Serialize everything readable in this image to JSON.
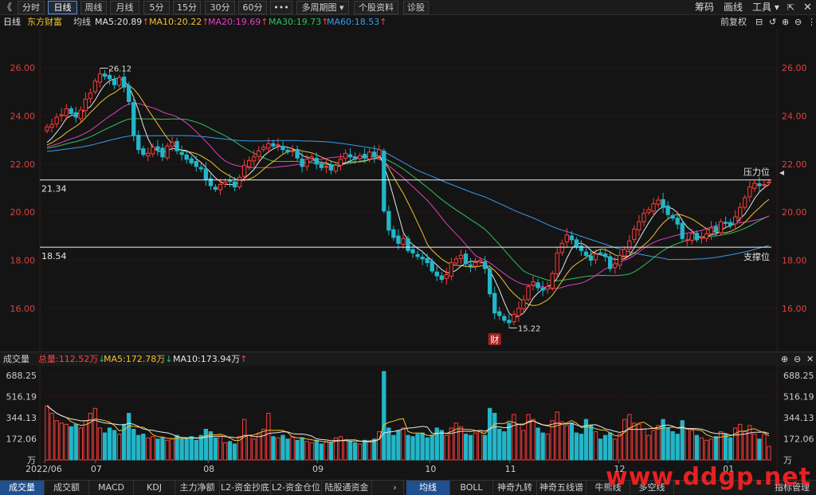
{
  "toolbar": {
    "back_glyph": "《",
    "periods": [
      "分时",
      "日线",
      "周线",
      "月线",
      "5分",
      "15分",
      "30分",
      "60分",
      "•••",
      "多周期图 ▾",
      "个股资料",
      "诊股"
    ],
    "active_period": "日线",
    "right": {
      "chip": "筹码",
      "draw": "画线",
      "tools": "工具 ▾"
    }
  },
  "ma_bar": {
    "period_label": "日线",
    "stock_name": "东方财富",
    "avg_label": "均线",
    "ma5": {
      "text": "MA5:20.89",
      "color": "#e6e6e6"
    },
    "ma10": {
      "text": "MA10:20.22",
      "color": "#f2c230"
    },
    "ma20": {
      "text": "MA20:19.69",
      "color": "#e040c0"
    },
    "ma30": {
      "text": "MA30:19.73",
      "color": "#30c060"
    },
    "ma60": {
      "text": "MA60:18.53",
      "color": "#3a9ae8"
    },
    "up_arrow": "↑",
    "adjust": "前复权"
  },
  "vol_bar": {
    "title": "成交量",
    "total": {
      "text": "总量:112.52万",
      "arrow": "↓",
      "color": "#ff4444"
    },
    "ma5": {
      "text": "MA5:172.78万",
      "arrow": "↓",
      "color": "#f2c230"
    },
    "ma10": {
      "text": "MA10:173.94万",
      "arrow": "↑",
      "color": "#e6e6e6"
    }
  },
  "bottom_tabs_left": [
    "成交量",
    "成交额",
    "MACD",
    "KDJ",
    "主力净额",
    "L2-资金抄底",
    "L2-资金仓位",
    "陆股通资金"
  ],
  "bottom_tabs_right": [
    "均线",
    "BOLL",
    "神奇九转",
    "神奇五线谱",
    "牛熊线",
    "多空线"
  ],
  "bottom_more": "›",
  "bottom_manage": "指标管理",
  "watermark": "www.ddgp.net",
  "colors": {
    "up": "#ff3b3b",
    "down": "#22b6c8",
    "bg": "#141414",
    "grid": "#3a1a1a"
  },
  "chart_data": {
    "type": "candlestick",
    "price_axis": {
      "ticks": [
        26.0,
        24.0,
        22.0,
        20.0,
        18.0,
        16.0
      ],
      "tick_labels": [
        "26.00",
        "24.00",
        "22.00",
        "20.00",
        "18.00",
        "16.00"
      ],
      "range": [
        14.4,
        27.4
      ]
    },
    "volume_axis": {
      "ticks": [
        688.25,
        516.19,
        344.13,
        172.06
      ],
      "tick_labels": [
        "688.25",
        "516.19",
        "344.13",
        "172.06"
      ],
      "unit": "万",
      "range": [
        0,
        740
      ]
    },
    "x_labels": [
      "2022/06",
      "07",
      "08",
      "09",
      "10",
      "11",
      "12",
      "01"
    ],
    "horizontal_lines": [
      {
        "value": 21.34,
        "label": "21.34",
        "annotation": "压力位"
      },
      {
        "value": 18.54,
        "label": "18.54",
        "annotation": "支撑位"
      }
    ],
    "high_marker": {
      "value": "26.12"
    },
    "low_marker": {
      "value": "15.22"
    },
    "event_marker": "财",
    "close": [
      23.55,
      23.65,
      23.95,
      24.05,
      24.3,
      24.1,
      23.95,
      24.25,
      24.7,
      24.95,
      25.45,
      25.75,
      25.65,
      25.55,
      25.3,
      25.6,
      25.2,
      24.6,
      23.2,
      22.6,
      22.4,
      22.45,
      22.7,
      22.6,
      22.3,
      22.75,
      22.9,
      22.55,
      22.4,
      22.2,
      22.05,
      21.9,
      21.8,
      21.35,
      21.1,
      20.95,
      21.15,
      21.25,
      21.3,
      21.05,
      21.45,
      21.95,
      22.15,
      22.3,
      22.55,
      22.7,
      22.85,
      22.75,
      22.8,
      22.6,
      22.5,
      22.55,
      22.25,
      21.9,
      22.2,
      22.3,
      22.0,
      21.85,
      21.9,
      21.75,
      21.95,
      22.2,
      22.45,
      22.3,
      22.2,
      22.35,
      22.25,
      22.5,
      22.3,
      22.6,
      20.05,
      19.25,
      18.95,
      18.7,
      18.9,
      18.4,
      18.3,
      18.15,
      18.05,
      17.9,
      17.55,
      17.35,
      17.2,
      17.4,
      17.9,
      18.05,
      18.2,
      17.85,
      17.75,
      17.9,
      18.0,
      17.65,
      16.6,
      15.8,
      15.7,
      15.5,
      15.4,
      15.75,
      16.0,
      16.35,
      16.9,
      17.1,
      16.85,
      16.75,
      16.9,
      17.45,
      18.3,
      18.7,
      19.05,
      18.85,
      18.55,
      18.4,
      18.2,
      18.0,
      18.25,
      18.3,
      18.15,
      17.65,
      17.85,
      18.2,
      18.45,
      18.8,
      19.3,
      19.6,
      19.95,
      20.1,
      20.35,
      20.5,
      20.2,
      19.9,
      19.75,
      19.5,
      18.9,
      18.85,
      19.1,
      18.85,
      18.95,
      19.1,
      19.35,
      19.2,
      19.6,
      19.55,
      19.45,
      19.8,
      20.2,
      20.6,
      21.05,
      21.2,
      21.1,
      21.15,
      21.25
    ],
    "volume": [
      440,
      380,
      320,
      300,
      290,
      270,
      290,
      260,
      320,
      380,
      420,
      260,
      220,
      260,
      240,
      210,
      290,
      380,
      250,
      200,
      210,
      180,
      190,
      170,
      180,
      160,
      170,
      200,
      170,
      180,
      190,
      160,
      200,
      250,
      230,
      180,
      190,
      140,
      150,
      130,
      190,
      330,
      200,
      170,
      210,
      250,
      380,
      190,
      180,
      200,
      170,
      190,
      160,
      180,
      150,
      140,
      160,
      130,
      150,
      140,
      180,
      190,
      160,
      150,
      140,
      130,
      160,
      150,
      170,
      230,
      720,
      260,
      200,
      240,
      260,
      200,
      190,
      210,
      220,
      180,
      200,
      260,
      240,
      200,
      260,
      300,
      270,
      210,
      200,
      220,
      240,
      200,
      420,
      380,
      250,
      230,
      300,
      370,
      290,
      240,
      370,
      330,
      260,
      220,
      210,
      320,
      390,
      310,
      280,
      300,
      220,
      210,
      330,
      280,
      230,
      170,
      200,
      220,
      170,
      210,
      330,
      370,
      300,
      290,
      250,
      200,
      240,
      280,
      330,
      260,
      230,
      210,
      320,
      250,
      240,
      200,
      180,
      160,
      170,
      190,
      230,
      210,
      180,
      260,
      290,
      230,
      280,
      210,
      170,
      210,
      110
    ]
  }
}
